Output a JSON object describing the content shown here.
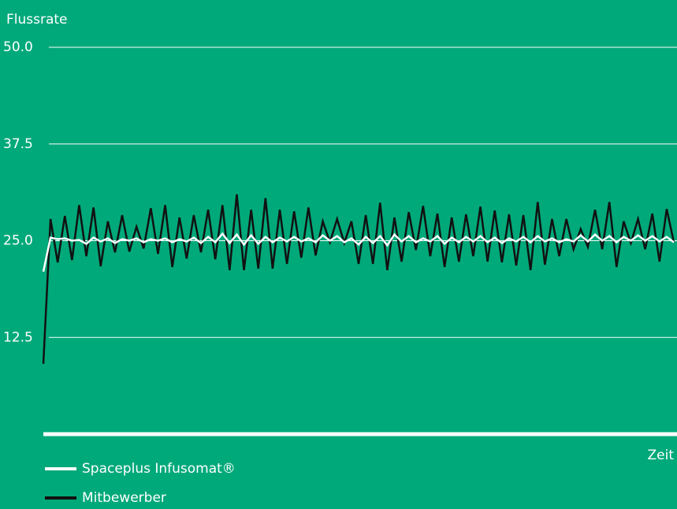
{
  "chart_data": {
    "type": "line",
    "title": "Flussrate",
    "x_label": "Zeit",
    "ylim": [
      0,
      50
    ],
    "yticks": [
      {
        "value": 50,
        "label": "50.0"
      },
      37.5,
      {
        "value": 25,
        "label": "25.0"
      },
      12.5
    ],
    "grid": true,
    "legend": "bottom-left",
    "series": [
      {
        "name": "Spaceplus Infusomat®",
        "color": "#ffffff",
        "values": [
          21.0,
          25.4,
          25.2,
          25.3,
          25.0,
          25.1,
          24.6,
          25.4,
          24.9,
          25.3,
          24.7,
          25.2,
          25.0,
          25.3,
          24.8,
          25.2,
          25.0,
          25.3,
          24.8,
          25.2,
          24.9,
          25.4,
          24.7,
          25.5,
          24.8,
          25.9,
          24.7,
          25.8,
          24.5,
          25.7,
          24.6,
          25.5,
          24.8,
          25.4,
          24.9,
          25.5,
          24.9,
          25.3,
          24.8,
          25.7,
          25.0,
          25.6,
          24.8,
          25.3,
          24.5,
          25.5,
          24.7,
          25.6,
          24.4,
          25.8,
          24.9,
          25.6,
          24.8,
          25.3,
          24.9,
          25.6,
          24.6,
          25.4,
          24.8,
          25.5,
          24.9,
          25.6,
          24.8,
          25.4,
          24.7,
          25.3,
          24.9,
          25.5,
          24.8,
          25.6,
          24.9,
          25.3,
          24.8,
          25.2,
          24.9,
          25.7,
          24.9,
          25.8,
          25.0,
          25.6,
          24.8,
          25.5,
          25.0,
          25.7,
          25.0,
          25.6,
          24.9,
          25.5,
          24.8
        ]
      },
      {
        "name": "Mitbewerber",
        "color": "#111111",
        "values": [
          9.1,
          27.8,
          22.2,
          28.2,
          22.5,
          29.6,
          23.0,
          29.3,
          21.7,
          27.5,
          23.5,
          28.3,
          23.6,
          26.8,
          24.0,
          29.2,
          23.3,
          29.6,
          21.6,
          28.0,
          22.7,
          28.3,
          23.5,
          29.0,
          22.6,
          29.6,
          21.2,
          31.0,
          21.2,
          29.0,
          21.4,
          30.5,
          21.4,
          29.0,
          22.0,
          28.8,
          22.8,
          29.3,
          23.1,
          27.5,
          24.8,
          27.8,
          24.7,
          27.5,
          22.0,
          28.3,
          22.0,
          29.9,
          21.2,
          28.0,
          22.3,
          28.7,
          23.8,
          29.5,
          23.0,
          28.5,
          21.6,
          28.0,
          22.3,
          28.4,
          23.0,
          29.4,
          22.3,
          28.9,
          22.2,
          28.4,
          21.8,
          28.3,
          21.2,
          30.0,
          21.9,
          27.8,
          23.0,
          27.8,
          23.9,
          26.5,
          24.2,
          29.0,
          23.9,
          30.0,
          21.6,
          27.5,
          24.7,
          27.8,
          23.9,
          28.5,
          22.3,
          29.1,
          24.8
        ]
      }
    ]
  }
}
